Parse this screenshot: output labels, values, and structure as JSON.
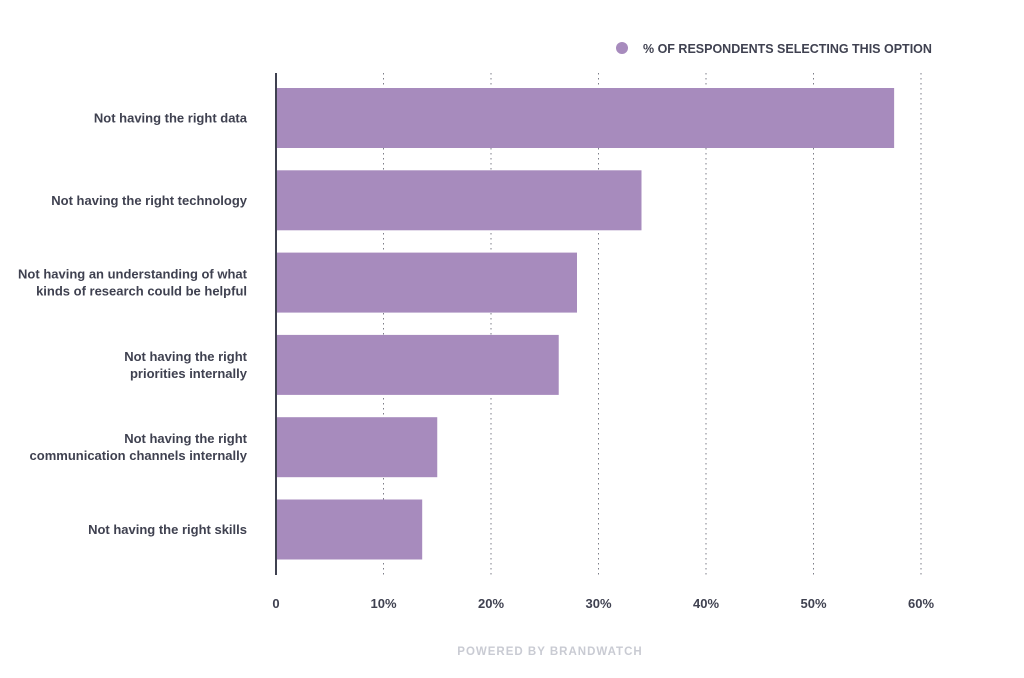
{
  "chart_data": {
    "type": "bar",
    "orientation": "horizontal",
    "categories": [
      "Not having the right data",
      "Not having the right technology",
      "Not having an understanding of what kinds of research could be helpful",
      "Not having the right priorities internally",
      "Not having the right communication channels internally",
      "Not having the right skills"
    ],
    "category_lines": [
      [
        "Not having the right data"
      ],
      [
        "Not having the right technology"
      ],
      [
        "Not having an understanding of what",
        "kinds of research could be helpful"
      ],
      [
        "Not having the right",
        "priorities internally"
      ],
      [
        "Not having the right",
        "communication channels internally"
      ],
      [
        "Not having the right skills"
      ]
    ],
    "series": [
      {
        "name": "% OF RESPONDENTS SELECTING THIS OPTION",
        "values": [
          57.5,
          34,
          28,
          26.3,
          15,
          13.6
        ]
      }
    ],
    "xlim": [
      0,
      60
    ],
    "xticks": [
      0,
      10,
      20,
      30,
      40,
      50,
      60
    ],
    "xtick_labels": [
      "0",
      "10%",
      "20%",
      "30%",
      "40%",
      "50%",
      "60%"
    ],
    "grid": "vertical dotted",
    "legend_position": "top-right",
    "title": "",
    "xlabel": "",
    "ylabel": ""
  },
  "colors": {
    "bar": "#a78bbd",
    "axis": "#3f4150",
    "grid": "#7c7e88",
    "text": "#3f4150",
    "footer": "#c9cbd3"
  },
  "footer": {
    "text": "POWERED BY BRANDWATCH"
  }
}
